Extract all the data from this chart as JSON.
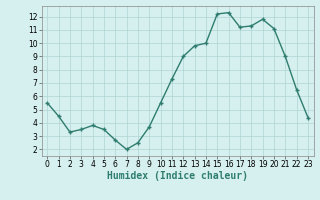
{
  "x": [
    0,
    1,
    2,
    3,
    4,
    5,
    6,
    7,
    8,
    9,
    10,
    11,
    12,
    13,
    14,
    15,
    16,
    17,
    18,
    19,
    20,
    21,
    22,
    23
  ],
  "y": [
    5.5,
    4.5,
    3.3,
    3.5,
    3.8,
    3.5,
    2.7,
    2.0,
    2.5,
    3.7,
    5.5,
    7.3,
    9.0,
    9.8,
    10.0,
    12.2,
    12.3,
    11.2,
    11.3,
    11.8,
    11.1,
    9.0,
    6.5,
    4.4
  ],
  "xlabel": "Humidex (Indice chaleur)",
  "line_color": "#2e7d6e",
  "marker": "+",
  "bg_color": "#d6efef",
  "grid_color": "#b0d4d4",
  "xlim": [
    -0.5,
    23.5
  ],
  "ylim": [
    1.5,
    12.8
  ],
  "yticks": [
    2,
    3,
    4,
    5,
    6,
    7,
    8,
    9,
    10,
    11,
    12
  ],
  "xticks": [
    0,
    1,
    2,
    3,
    4,
    5,
    6,
    7,
    8,
    9,
    10,
    11,
    12,
    13,
    14,
    15,
    16,
    17,
    18,
    19,
    20,
    21,
    22,
    23
  ],
  "tick_fontsize": 5.5,
  "xlabel_fontsize": 7,
  "linewidth": 1.0,
  "markersize": 3.5
}
